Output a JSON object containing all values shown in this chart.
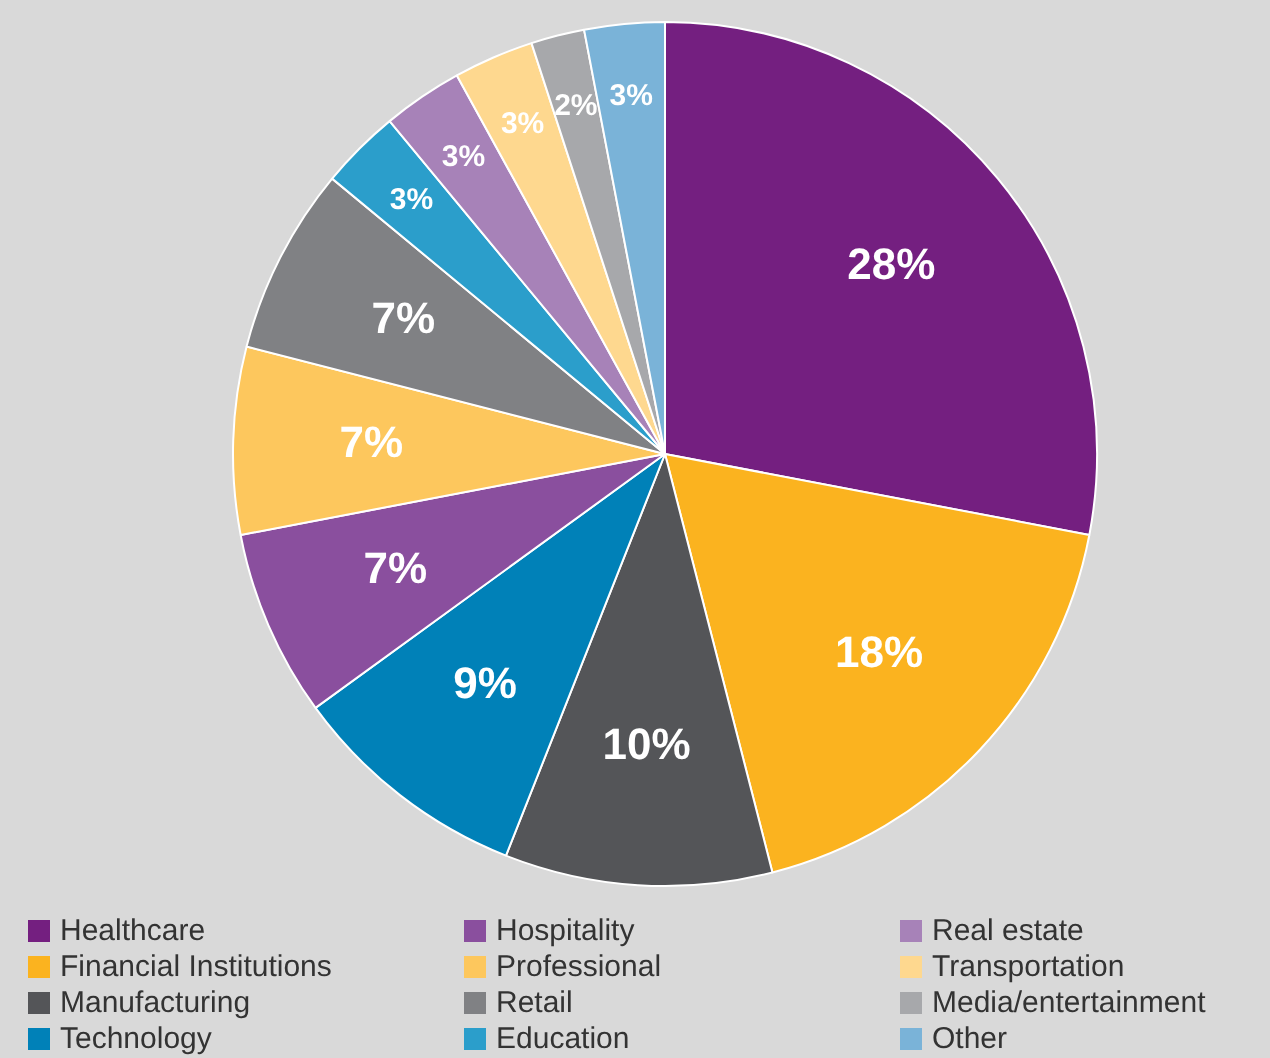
{
  "chart_data": {
    "type": "pie",
    "categories": [
      "Healthcare",
      "Financial Institutions",
      "Manufacturing",
      "Technology",
      "Hospitality",
      "Professional",
      "Retail",
      "Education",
      "Real estate",
      "Transportation",
      "Media/entertainment",
      "Other"
    ],
    "values": [
      28,
      18,
      10,
      9,
      7,
      7,
      7,
      3,
      3,
      3,
      2,
      3
    ],
    "colors": [
      "#741f80",
      "#fbb31f",
      "#545558",
      "#0081b8",
      "#8a4f9e",
      "#fdc75d",
      "#808184",
      "#2b9ecb",
      "#a782b8",
      "#fed88f",
      "#a7a8ab",
      "#7ab3d8"
    ],
    "value_labels": [
      "28%",
      "18%",
      "10%",
      "9%",
      "7%",
      "7%",
      "7%",
      "3%",
      "3%",
      "3%",
      "2%",
      "3%"
    ],
    "legend": "bottom"
  }
}
